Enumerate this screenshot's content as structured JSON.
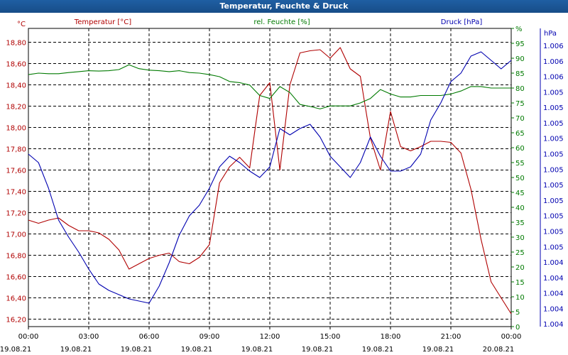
{
  "window": {
    "title": "Temperatur, Feuchte & Druck"
  },
  "chart_data": {
    "type": "line",
    "title": "Temperatur, Feuchte & Druck",
    "x": [
      "00:00",
      "00:30",
      "01:00",
      "01:30",
      "02:00",
      "02:30",
      "03:00",
      "03:30",
      "04:00",
      "04:30",
      "05:00",
      "05:30",
      "06:00",
      "06:30",
      "07:00",
      "07:30",
      "08:00",
      "08:30",
      "09:00",
      "09:30",
      "10:00",
      "10:30",
      "11:00",
      "11:30",
      "12:00",
      "12:30",
      "13:00",
      "13:30",
      "14:00",
      "14:30",
      "15:00",
      "15:30",
      "16:00",
      "16:30",
      "17:00",
      "17:30",
      "18:00",
      "18:30",
      "19:00",
      "19:30",
      "20:00",
      "20:30",
      "21:00",
      "21:30",
      "22:00",
      "22:30",
      "23:00",
      "23:30",
      "00:00"
    ],
    "x_ticks": [
      {
        "time": "00:00",
        "date": "19.08.21"
      },
      {
        "time": "03:00",
        "date": "19.08.21"
      },
      {
        "time": "06:00",
        "date": "19.08.21"
      },
      {
        "time": "09:00",
        "date": "19.08.21"
      },
      {
        "time": "12:00",
        "date": "19.08.21"
      },
      {
        "time": "15:00",
        "date": "19.08.21"
      },
      {
        "time": "18:00",
        "date": "19.08.21"
      },
      {
        "time": "21:00",
        "date": "19.08.21"
      },
      {
        "time": "00:00",
        "date": "20.08.21"
      }
    ],
    "xlim_hours": [
      0,
      24
    ],
    "grid": true,
    "series": [
      {
        "name": "Temperatur [°C]",
        "axis": "left",
        "color": "#b00000",
        "values": [
          17.13,
          17.1,
          17.13,
          17.15,
          17.08,
          17.03,
          17.03,
          17.01,
          16.95,
          16.85,
          16.67,
          16.72,
          16.77,
          16.8,
          16.82,
          16.74,
          16.72,
          16.78,
          16.9,
          17.48,
          17.63,
          17.72,
          17.62,
          18.3,
          18.42,
          17.6,
          18.4,
          18.7,
          18.72,
          18.73,
          18.65,
          18.75,
          18.55,
          18.48,
          17.9,
          17.6,
          18.15,
          17.82,
          17.78,
          17.82,
          17.87,
          17.87,
          17.86,
          17.76,
          17.42,
          16.95,
          16.55,
          16.4,
          16.25
        ]
      },
      {
        "name": "rel. Feuchte [%]",
        "axis": "right1",
        "color": "#007a00",
        "values": [
          84.5,
          85.0,
          84.8,
          84.8,
          85.2,
          85.5,
          85.8,
          85.7,
          85.8,
          86.2,
          87.8,
          86.5,
          86.0,
          85.8,
          85.5,
          85.8,
          85.2,
          85.0,
          84.5,
          83.8,
          82.2,
          81.8,
          81.0,
          77.5,
          76.5,
          80.5,
          78.5,
          74.5,
          73.8,
          73.0,
          74.0,
          74.0,
          74.0,
          75.0,
          76.5,
          79.5,
          78.0,
          77.0,
          77.0,
          77.5,
          77.5,
          77.5,
          78.0,
          79.0,
          80.5,
          80.5,
          80.0,
          80.0,
          80.0
        ]
      },
      {
        "name": "Druck [hPa]",
        "axis": "right2",
        "color": "#0000b0",
        "values": [
          0.76,
          0.72,
          0.6,
          0.45,
          0.37,
          0.3,
          0.22,
          0.15,
          0.12,
          0.1,
          0.08,
          0.07,
          0.06,
          0.14,
          0.25,
          0.38,
          0.47,
          0.52,
          0.6,
          0.7,
          0.75,
          0.72,
          0.68,
          0.65,
          0.7,
          0.88,
          0.85,
          0.88,
          0.9,
          0.84,
          0.75,
          0.7,
          0.65,
          0.72,
          0.84,
          0.75,
          0.68,
          0.68,
          0.7,
          0.76,
          0.92,
          1.0,
          1.1,
          1.14,
          1.22,
          1.24,
          1.2,
          1.16,
          1.2
        ]
      }
    ],
    "axes": {
      "left": {
        "label": "Temperatur [°C]",
        "unit": "°C",
        "ylim": [
          16.13,
          18.93
        ],
        "ticks": [
          "16,20",
          "16,40",
          "16,60",
          "16,80",
          "17,00",
          "17,20",
          "17,40",
          "17,60",
          "17,80",
          "18,00",
          "18,20",
          "18,40",
          "18,60",
          "18,80"
        ],
        "tick_values": [
          16.2,
          16.4,
          16.6,
          16.8,
          17.0,
          17.2,
          17.4,
          17.6,
          17.8,
          18.0,
          18.2,
          18.4,
          18.6,
          18.8
        ]
      },
      "right1": {
        "label": "rel. Feuchte [%]",
        "unit": "%",
        "ylim": [
          0,
          100
        ],
        "ticks": [
          "0",
          "5",
          "10",
          "15",
          "20",
          "25",
          "30",
          "35",
          "40",
          "45",
          "50",
          "55",
          "60",
          "65",
          "70",
          "75",
          "80",
          "85",
          "90",
          "95",
          "%"
        ],
        "tick_values": [
          0,
          5,
          10,
          15,
          20,
          25,
          30,
          35,
          40,
          45,
          50,
          55,
          60,
          65,
          70,
          75,
          80,
          85,
          90,
          95,
          100
        ]
      },
      "right2": {
        "label": "Druck [hPa]",
        "unit": "hPa",
        "ticks": [
          "1.006",
          "1.006",
          "1.006",
          "1.005",
          "1.005",
          "1.005",
          "1.005",
          "1.005",
          "1.005",
          "1.005",
          "1.005",
          "1.005",
          "1.005",
          "1.005",
          "1.004",
          "1.004",
          "1.004",
          "1.004",
          "1.004"
        ]
      }
    }
  }
}
